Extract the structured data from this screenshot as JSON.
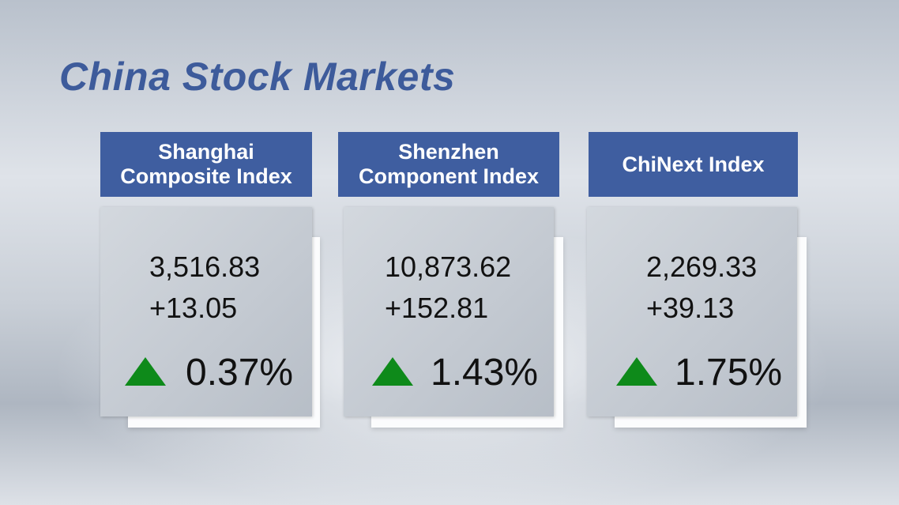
{
  "header": {
    "title": "China Stock Markets"
  },
  "indices": [
    {
      "name": "Shanghai Composite Index",
      "value": "3,516.83",
      "change": "+13.05",
      "percent": "0.37%"
    },
    {
      "name": "Shenzhen Component Index",
      "value": "10,873.62",
      "change": "+152.81",
      "percent": "1.43%"
    },
    {
      "name": "ChiNext Index",
      "value": "2,269.33",
      "change": "+39.13",
      "percent": "1.75%"
    }
  ]
}
